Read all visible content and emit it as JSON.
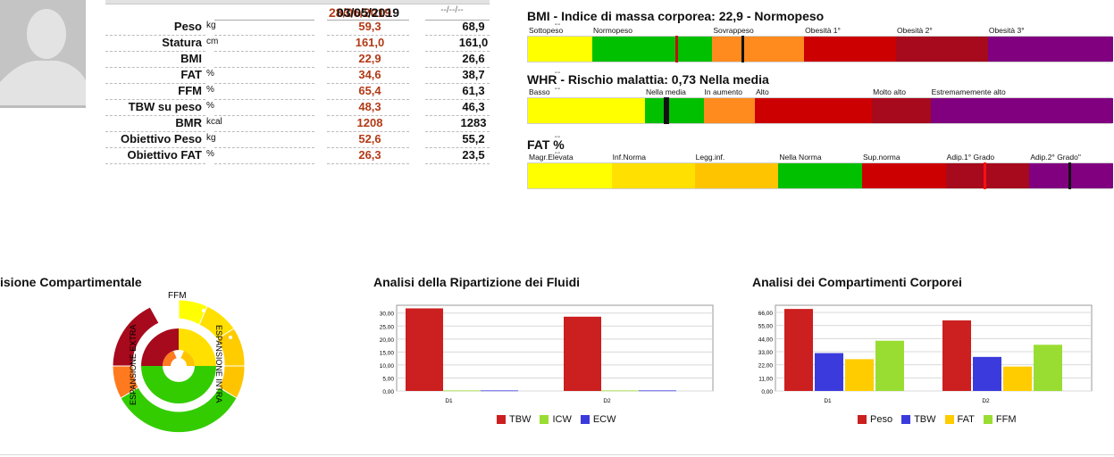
{
  "header": {
    "date_current": "28/06/2019",
    "date_previous": "03/05/2019",
    "date_empty": "--/--/--"
  },
  "measurements": [
    {
      "label": "Peso",
      "unit": "kg",
      "current": "59,3",
      "previous": "68,9",
      "empty": "--"
    },
    {
      "label": "Statura",
      "unit": "cm",
      "current": "161,0",
      "previous": "161,0",
      "empty": "--"
    },
    {
      "label": "BMI",
      "unit": "",
      "current": "22,9",
      "previous": "26,6",
      "empty": "--"
    },
    {
      "label": "FAT",
      "unit": "%",
      "current": "34,6",
      "previous": "38,7",
      "empty": "--"
    },
    {
      "label": "FFM",
      "unit": "%",
      "current": "65,4",
      "previous": "61,3",
      "empty": "--"
    },
    {
      "label": "TBW su peso",
      "unit": "%",
      "current": "48,3",
      "previous": "46,3",
      "empty": "--"
    },
    {
      "label": "BMR",
      "unit": "kcal",
      "current": "1208",
      "previous": "1283",
      "empty": "--"
    },
    {
      "label": "Obiettivo Peso",
      "unit": "kg",
      "current": "52,6",
      "previous": "55,2",
      "empty": "--"
    },
    {
      "label": "Obiettivo FAT",
      "unit": "%",
      "current": "26,3",
      "previous": "23,5",
      "empty": "--"
    }
  ],
  "indicators": [
    {
      "title": "BMI - Indice di massa corporea: 22,9 - Normopeso",
      "segments": [
        {
          "label": "Sottopeso",
          "color": "#ffff00",
          "share": 0.11
        },
        {
          "label": "Normopeso",
          "color": "#00c000",
          "share": 0.205
        },
        {
          "label": "Sovrappeso",
          "color": "#ff8a1e",
          "share": 0.157
        },
        {
          "label": "Obesità 1°",
          "color": "#cc0000",
          "share": 0.157
        },
        {
          "label": "Obesità 2°",
          "color": "#a60a1c",
          "share": 0.157
        },
        {
          "label": "Obesità 3°",
          "color": "#800080",
          "share": 0.214
        }
      ],
      "markers": [
        0.253,
        0.367
      ]
    },
    {
      "title": "WHR - Rischio malattia: 0,73 Nella media",
      "segments": [
        {
          "label": "Basso",
          "color": "#ffff00",
          "share": 0.2
        },
        {
          "label": "Nella media",
          "color": "#00c000",
          "share": 0.1
        },
        {
          "label": "In aumento",
          "color": "#ff8a1e",
          "share": 0.088
        },
        {
          "label": "Alto",
          "color": "#cc0000",
          "share": 0.2
        },
        {
          "label": "Molto alto",
          "color": "#a60a1c",
          "share": 0.1
        },
        {
          "label": "Estremamemente alto",
          "color": "#800080",
          "share": 0.312
        }
      ],
      "markers": [
        0.233,
        0.238
      ]
    },
    {
      "title": "FAT %",
      "segments": [
        {
          "label": "Magr.Elevata",
          "color": "#ffff00",
          "share": 0.143
        },
        {
          "label": "Inf.Norma",
          "color": "#ffe000",
          "share": 0.142
        },
        {
          "label": "Legg.inf.",
          "color": "#ffc400",
          "share": 0.143
        },
        {
          "label": "Nella Norma",
          "color": "#00c000",
          "share": 0.143
        },
        {
          "label": "Sup.norma",
          "color": "#cc0000",
          "share": 0.143
        },
        {
          "label": "Adip.1° Grado",
          "color": "#a60a1c",
          "share": 0.143
        },
        {
          "label": "Adip.2° Grado\"",
          "color": "#800080",
          "share": 0.143
        }
      ],
      "markers": [
        0.78,
        0.925
      ]
    }
  ],
  "charts": {
    "ring_title": "isione Compartimentale",
    "ring_labels": {
      "ffm": "FFM",
      "extra": "ESPANSIONE EXTRA",
      "intra": "ESPANSIONE INTRA"
    },
    "fluids_title": "Analisi della Ripartizione dei Fluidi",
    "bodycomp_title": "Analisi dei Compartimenti Corporei"
  },
  "chart_data": [
    {
      "type": "bar",
      "title": "Analisi della Ripartizione dei Fluidi",
      "categories": [
        "D1",
        "D2"
      ],
      "series": [
        {
          "name": "TBW",
          "color": "#cc1f1f",
          "values": [
            31.8,
            28.6
          ]
        },
        {
          "name": "ICW",
          "color": "#99dd33",
          "values": [
            0.2,
            0.2
          ]
        },
        {
          "name": "ECW",
          "color": "#3b3bdd",
          "values": [
            0.2,
            0.2
          ]
        }
      ],
      "yticks": [
        "0,00",
        "5,00",
        "10,00",
        "15,00",
        "20,00",
        "25,00",
        "30,00"
      ],
      "ylim": [
        0,
        33
      ]
    },
    {
      "type": "bar",
      "title": "Analisi dei Compartimenti Corporei",
      "categories": [
        "D1",
        "D2"
      ],
      "series": [
        {
          "name": "Peso",
          "color": "#cc1f1f",
          "values": [
            68.9,
            59.3
          ]
        },
        {
          "name": "TBW",
          "color": "#3b3bdd",
          "values": [
            31.8,
            28.6
          ]
        },
        {
          "name": "FAT",
          "color": "#ffcc00",
          "values": [
            26.7,
            20.5
          ]
        },
        {
          "name": "FFM",
          "color": "#99dd33",
          "values": [
            42.2,
            38.8
          ]
        }
      ],
      "yticks": [
        "0,00",
        "11,00",
        "22,00",
        "33,00",
        "44,00",
        "55,00",
        "66,00"
      ],
      "ylim": [
        0,
        72
      ]
    }
  ]
}
